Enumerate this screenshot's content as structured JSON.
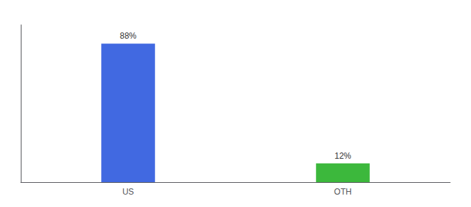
{
  "chart_data": {
    "type": "bar",
    "categories": [
      "US",
      "OTH"
    ],
    "values": [
      88,
      12
    ],
    "value_labels": [
      "88%",
      "12%"
    ],
    "colors": [
      "#4169e1",
      "#3cb83c"
    ],
    "ylim": [
      0,
      100
    ],
    "data_labels": true,
    "tick_labels": "x",
    "grid": false
  }
}
